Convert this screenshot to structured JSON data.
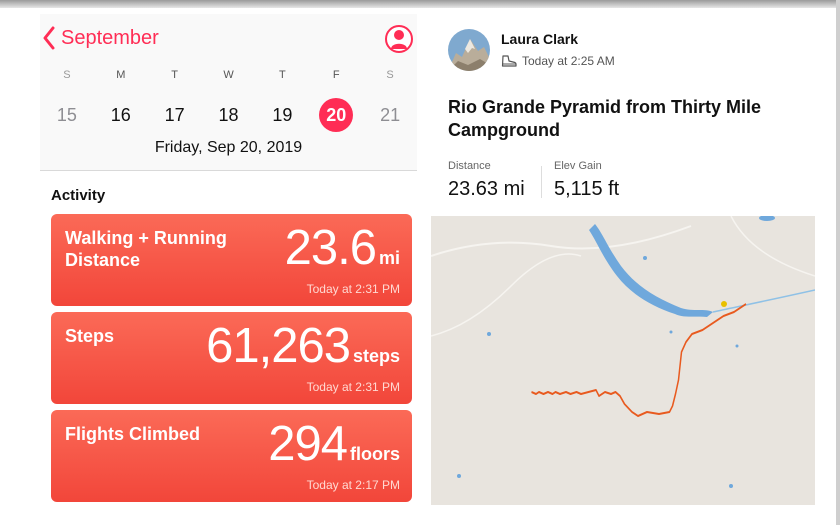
{
  "health": {
    "month": "September",
    "weekdays": [
      "S",
      "M",
      "T",
      "W",
      "T",
      "F",
      "S"
    ],
    "days": [
      "15",
      "16",
      "17",
      "18",
      "19",
      "20",
      "21"
    ],
    "selected_day": "20",
    "date_label": "Friday, Sep 20, 2019",
    "section_title": "Activity",
    "cards": [
      {
        "label": "Walking + Running Distance",
        "value": "23.6",
        "unit": "mi",
        "time": "Today at 2:31 PM"
      },
      {
        "label": "Steps",
        "value": "61,263",
        "unit": "steps",
        "time": "Today at 2:31 PM"
      },
      {
        "label": "Flights Climbed",
        "value": "294",
        "unit": "floors",
        "time": "Today at 2:17 PM"
      }
    ],
    "accent": "#ff2d55",
    "card_color": "#f5503f"
  },
  "strava": {
    "athlete": "Laura Clark",
    "timestamp": "Today at 2:25 AM",
    "activity_icon": "hiking-boot-icon",
    "title": "Rio Grande Pyramid from Thirty Mile Campground",
    "stats": [
      {
        "label": "Distance",
        "value": "23.63 mi"
      },
      {
        "label": "Elev Gain",
        "value": "5,115 ft"
      }
    ],
    "route_color": "#e85a1f",
    "water_color": "#6fa8dc"
  }
}
